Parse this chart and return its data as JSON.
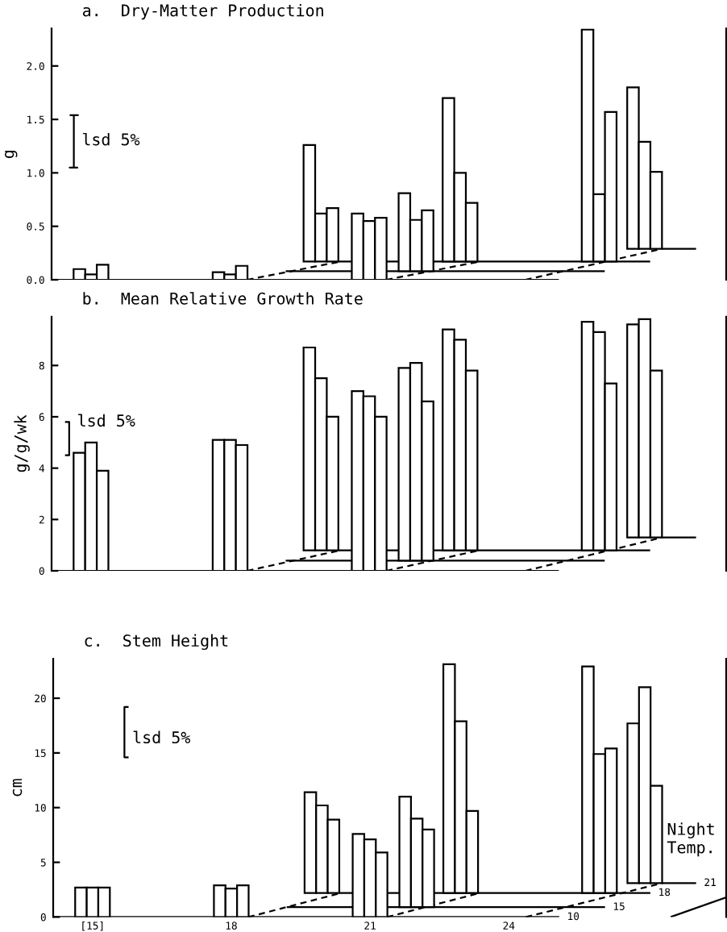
{
  "chart_data": [
    {
      "type": "bar",
      "title": "a.  Dry-Matter Production",
      "ylabel": "g",
      "xlim": [
        14.15,
        28.7
      ],
      "ylim": [
        0,
        2.35
      ],
      "yticks": [
        {
          "value": 0,
          "label": "0.0"
        },
        {
          "value": 0.5,
          "label": "0.5"
        },
        {
          "value": 1,
          "label": "1.0"
        },
        {
          "value": 1.5,
          "label": "1.5"
        },
        {
          "value": 2,
          "label": "2.0"
        }
      ],
      "tick_labels": "y",
      "series": [
        {
          "type": "line",
          "x": [
            14.15,
            25.09
          ],
          "values": [
            0,
            0
          ],
          "color": "#000000"
        },
        {
          "type": "line",
          "x": [
            19.2,
            26.08
          ],
          "values": [
            0.08,
            0.08
          ],
          "color": "#000000"
        },
        {
          "type": "line",
          "x": [
            20.34,
            27.06
          ],
          "values": [
            0.17,
            0.17
          ],
          "color": "#000000"
        },
        {
          "type": "line",
          "x": [
            27.32,
            28.05
          ],
          "values": [
            0.29,
            0.29
          ],
          "color": "#000000"
        },
        {
          "type": "line",
          "x": [
            18.37,
            20.38
          ],
          "values": [
            0,
            0.17
          ],
          "color": "#000000",
          "line_style": "dashed"
        },
        {
          "type": "line",
          "x": [
            21.37,
            23.38
          ],
          "values": [
            0,
            0.17
          ],
          "color": "#000000",
          "line_style": "dashed"
        },
        {
          "type": "line",
          "x": [
            24.37,
            27.32
          ],
          "values": [
            0,
            0.29
          ],
          "color": "#000000",
          "line_style": "dashed"
        },
        {
          "x": [
            14.75,
            15,
            15.25,
            17.75,
            18,
            18.25,
            19.71,
            19.96,
            20.21,
            20.75,
            21,
            21.25,
            21.76,
            22.01,
            22.26,
            22.71,
            22.96,
            23.21,
            25.71,
            25.96,
            26.21,
            26.69,
            26.94,
            27.19
          ],
          "values": [
            0.1,
            0.05,
            0.14,
            0.07,
            0.05,
            0.13,
            1.09,
            0.45,
            0.5,
            0.62,
            0.55,
            0.58,
            0.73,
            0.48,
            0.57,
            1.53,
            0.83,
            0.55,
            2.17,
            0.63,
            1.4,
            1.51,
            1.0,
            0.72
          ],
          "base": [
            0,
            0,
            0,
            0,
            0,
            0,
            0.17,
            0.17,
            0.17,
            0,
            0,
            0,
            0.08,
            0.08,
            0.08,
            0.17,
            0.17,
            0.17,
            0.17,
            0.17,
            0.17,
            0.29,
            0.29,
            0.29
          ],
          "color": "#ffffff"
        },
        {
          "type": "line",
          "x": [
            14.54,
            14.72,
            14.63,
            14.63,
            14.63,
            14.54,
            14.72
          ],
          "values": [
            1.54,
            1.54,
            1.54,
            1.3,
            1.05,
            1.05,
            1.05
          ],
          "color": "#000000"
        }
      ],
      "annotations": [
        {
          "text": "lsd 5%",
          "x": 14.63,
          "y": 1.3
        }
      ]
    },
    {
      "type": "bar",
      "title": "b.  Mean Relative Growth Rate",
      "ylabel": "g/g/wk",
      "xlim": [
        14.15,
        28.7
      ],
      "ylim": [
        0,
        9.9
      ],
      "yticks": [
        0,
        2,
        4,
        6,
        8
      ],
      "tick_labels": "y",
      "series": [
        {
          "type": "line",
          "x": [
            14.15,
            25.09
          ],
          "values": [
            0,
            0
          ],
          "color": "#000000"
        },
        {
          "type": "line",
          "x": [
            19.2,
            26.08
          ],
          "values": [
            0.4,
            0.4
          ],
          "color": "#000000"
        },
        {
          "type": "line",
          "x": [
            20.34,
            27.06
          ],
          "values": [
            0.8,
            0.8
          ],
          "color": "#000000"
        },
        {
          "type": "line",
          "x": [
            27.32,
            28.05
          ],
          "values": [
            1.3,
            1.3
          ],
          "color": "#000000"
        },
        {
          "type": "line",
          "x": [
            18.37,
            20.38
          ],
          "values": [
            0,
            0.8
          ],
          "color": "#000000",
          "line_style": "dashed"
        },
        {
          "type": "line",
          "x": [
            21.37,
            23.38
          ],
          "values": [
            0,
            0.8
          ],
          "color": "#000000",
          "line_style": "dashed"
        },
        {
          "type": "line",
          "x": [
            24.37,
            27.32
          ],
          "values": [
            0,
            1.3
          ],
          "color": "#000000",
          "line_style": "dashed"
        },
        {
          "x": [
            14.75,
            15,
            15.25,
            17.75,
            18,
            18.25,
            19.71,
            19.96,
            20.21,
            20.75,
            21,
            21.25,
            21.76,
            22.01,
            22.26,
            22.71,
            22.96,
            23.21,
            25.71,
            25.96,
            26.21,
            26.69,
            26.94,
            27.19
          ],
          "values": [
            4.6,
            5.0,
            3.9,
            5.1,
            5.1,
            4.9,
            7.9,
            6.7,
            5.2,
            7.0,
            6.8,
            6.0,
            7.5,
            7.7,
            6.2,
            8.6,
            8.2,
            7.0,
            8.9,
            8.5,
            6.5,
            8.3,
            8.5,
            6.5
          ],
          "base": [
            0,
            0,
            0,
            0,
            0,
            0,
            0.8,
            0.8,
            0.8,
            0,
            0,
            0,
            0.4,
            0.4,
            0.4,
            0.8,
            0.8,
            0.8,
            0.8,
            0.8,
            0.8,
            1.3,
            1.3,
            1.3
          ],
          "color": "#ffffff"
        },
        {
          "type": "line",
          "x": [
            14.44,
            14.53,
            14.53,
            14.44
          ],
          "values": [
            4.5,
            4.5,
            5.8,
            5.8
          ],
          "color": "#000000"
        }
      ],
      "annotations": [
        {
          "text": "lsd 5%",
          "x": 14.53,
          "y": 5.8
        }
      ]
    },
    {
      "type": "bar",
      "title": "c.  Stem Height",
      "ylabel": "cm",
      "xlim": [
        14.15,
        28.7
      ],
      "ylim": [
        0,
        23.6
      ],
      "yticks": [
        0,
        5,
        10,
        15,
        20
      ],
      "xticks": [
        {
          "value": 15,
          "label": "[15]"
        },
        18,
        21,
        24
      ],
      "series": [
        {
          "type": "line",
          "x": [
            14.15,
            25.09
          ],
          "values": [
            0,
            0
          ],
          "color": "#000000"
        },
        {
          "type": "line",
          "x": [
            19.2,
            26.08
          ],
          "values": [
            0.9,
            0.9
          ],
          "color": "#000000"
        },
        {
          "type": "line",
          "x": [
            20.34,
            27.06
          ],
          "values": [
            2.2,
            2.2
          ],
          "color": "#000000"
        },
        {
          "type": "line",
          "x": [
            27.32,
            28.05
          ],
          "values": [
            3.1,
            3.1
          ],
          "color": "#000000"
        },
        {
          "type": "line",
          "x": [
            18.37,
            20.38
          ],
          "values": [
            0,
            2.2
          ],
          "color": "#000000",
          "line_style": "dashed"
        },
        {
          "type": "line",
          "x": [
            21.37,
            23.38
          ],
          "values": [
            0,
            2.2
          ],
          "color": "#000000",
          "line_style": "dashed"
        },
        {
          "type": "line",
          "x": [
            24.37,
            27.32
          ],
          "values": [
            0,
            3.1
          ],
          "color": "#000000",
          "line_style": "dashed"
        },
        {
          "type": "line",
          "x": [
            27.5,
            28.7
          ],
          "values": [
            0,
            1.8
          ],
          "color": "#000000"
        },
        {
          "x": [
            14.75,
            15,
            15.25,
            17.75,
            18,
            18.25,
            19.71,
            19.96,
            20.21,
            20.75,
            21,
            21.25,
            21.76,
            22.01,
            22.26,
            22.71,
            22.96,
            23.21,
            25.71,
            25.96,
            26.21,
            26.69,
            26.94,
            27.19
          ],
          "values": [
            2.7,
            2.7,
            2.7,
            2.9,
            2.6,
            2.9,
            9.2,
            8.0,
            6.7,
            7.6,
            7.1,
            5.9,
            10.1,
            8.1,
            7.1,
            20.9,
            15.7,
            7.5,
            20.7,
            12.7,
            13.2,
            14.6,
            17.9,
            8.9
          ],
          "base": [
            0,
            0,
            0,
            0,
            0,
            0,
            2.2,
            2.2,
            2.2,
            0,
            0,
            0,
            0.9,
            0.9,
            0.9,
            2.2,
            2.2,
            2.2,
            2.2,
            2.2,
            2.2,
            3.1,
            3.1,
            3.1
          ],
          "color": "#ffffff"
        },
        {
          "type": "line",
          "x": [
            15.78,
            15.69,
            15.69,
            15.69,
            15.78
          ],
          "values": [
            19.2,
            19.2,
            16.3,
            14.6,
            14.6
          ],
          "color": "#000000"
        }
      ],
      "annotations": [
        {
          "text": "lsd 5%",
          "x": 15.69,
          "y": 16.3
        },
        "Night\nTemp.",
        {
          "text": "10",
          "x": 25.09,
          "y": 0
        },
        {
          "text": "15",
          "x": 26.08,
          "y": 0.9
        },
        {
          "text": "18",
          "x": 27.06,
          "y": 2.2
        },
        {
          "text": "21",
          "x": 28.05,
          "y": 3.1
        }
      ]
    }
  ]
}
